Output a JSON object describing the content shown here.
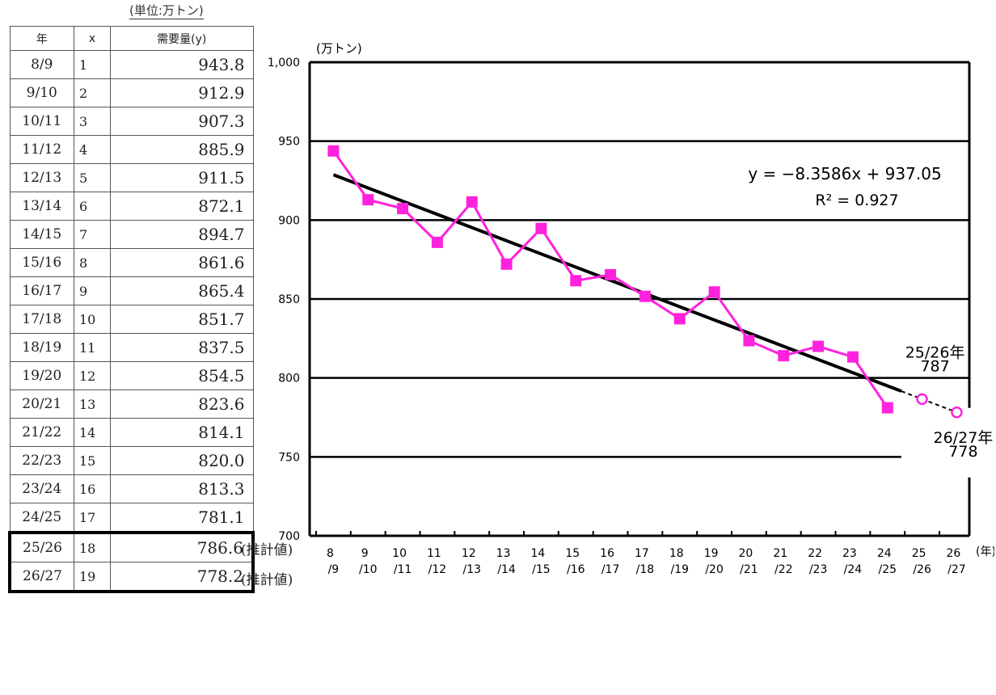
{
  "table": {
    "unit": "(単位:万トン)",
    "headers": {
      "year": "年",
      "x": "x",
      "y": "需要量(y)"
    },
    "rows": [
      {
        "year": "8/9",
        "x": "1",
        "y": "943.8"
      },
      {
        "year": "9/10",
        "x": "2",
        "y": "912.9"
      },
      {
        "year": "10/11",
        "x": "3",
        "y": "907.3"
      },
      {
        "year": "11/12",
        "x": "4",
        "y": "885.9"
      },
      {
        "year": "12/13",
        "x": "5",
        "y": "911.5"
      },
      {
        "year": "13/14",
        "x": "6",
        "y": "872.1"
      },
      {
        "year": "14/15",
        "x": "7",
        "y": "894.7"
      },
      {
        "year": "15/16",
        "x": "8",
        "y": "861.6"
      },
      {
        "year": "16/17",
        "x": "9",
        "y": "865.4"
      },
      {
        "year": "17/18",
        "x": "10",
        "y": "851.7"
      },
      {
        "year": "18/19",
        "x": "11",
        "y": "837.5"
      },
      {
        "year": "19/20",
        "x": "12",
        "y": "854.5"
      },
      {
        "year": "20/21",
        "x": "13",
        "y": "823.6"
      },
      {
        "year": "21/22",
        "x": "14",
        "y": "814.1"
      },
      {
        "year": "22/23",
        "x": "15",
        "y": "820.0"
      },
      {
        "year": "23/24",
        "x": "16",
        "y": "813.3"
      },
      {
        "year": "24/25",
        "x": "17",
        "y": "781.1"
      },
      {
        "year": "25/26",
        "x": "18",
        "y": "786.6",
        "note": "(推計値)"
      },
      {
        "year": "26/27",
        "x": "19",
        "y": "778.2",
        "note": "(推計値)"
      }
    ]
  },
  "chart_data": {
    "type": "line",
    "ylabel": "(万トン)",
    "xlabel": "(年)",
    "ylim": [
      700,
      1000
    ],
    "yticks": [
      {
        "v": 700,
        "label": "700"
      },
      {
        "v": 750,
        "label": "750"
      },
      {
        "v": 800,
        "label": "800"
      },
      {
        "v": 850,
        "label": "850"
      },
      {
        "v": 900,
        "label": "900"
      },
      {
        "v": 950,
        "label": "950"
      },
      {
        "v": 1000,
        "label": "1,000"
      }
    ],
    "categories": [
      [
        "8",
        "/9"
      ],
      [
        "9",
        "/10"
      ],
      [
        "10",
        "/11"
      ],
      [
        "11",
        "/12"
      ],
      [
        "12",
        "/13"
      ],
      [
        "13",
        "/14"
      ],
      [
        "14",
        "/15"
      ],
      [
        "15",
        "/16"
      ],
      [
        "16",
        "/17"
      ],
      [
        "17",
        "/18"
      ],
      [
        "18",
        "/19"
      ],
      [
        "19",
        "/20"
      ],
      [
        "20",
        "/21"
      ],
      [
        "21",
        "/22"
      ],
      [
        "22",
        "/23"
      ],
      [
        "23",
        "/24"
      ],
      [
        "24",
        "/25"
      ],
      [
        "25",
        "/26"
      ],
      [
        "26",
        "/27"
      ]
    ],
    "series": [
      {
        "x": [
          1,
          2,
          3,
          4,
          5,
          6,
          7,
          8,
          9,
          10,
          11,
          12,
          13,
          14,
          15,
          16,
          17
        ],
        "values": [
          943.8,
          912.9,
          907.3,
          885.9,
          911.5,
          872.1,
          894.7,
          861.6,
          865.4,
          851.7,
          837.5,
          854.5,
          823.6,
          814.1,
          820.0,
          813.3,
          781.1
        ],
        "color": "#ff22dd",
        "marker": "square"
      }
    ],
    "estimates": {
      "x": [
        18,
        19
      ],
      "values": [
        786.6,
        778.2
      ],
      "color": "#ff22dd",
      "marker": "circle"
    },
    "trendline": {
      "slope": -8.3586,
      "intercept": 937.05,
      "x_from": 1,
      "x_to": 19,
      "solid_to": 17.4
    },
    "equation": "y = −8.3586x + 937.05",
    "r_squared": "R² = 0.927",
    "annotations": [
      {
        "x": 18,
        "line1": "25/26年",
        "line2": "787"
      },
      {
        "x": 19,
        "line1": "26/27年",
        "line2": "778"
      }
    ],
    "grid": true
  }
}
